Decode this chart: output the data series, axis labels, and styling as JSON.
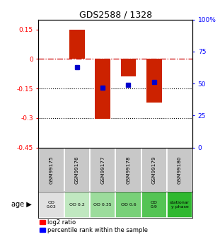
{
  "title": "GDS2588 / 1328",
  "samples": [
    "GSM99175",
    "GSM99176",
    "GSM99177",
    "GSM99178",
    "GSM99179",
    "GSM99180"
  ],
  "log2_ratio": [
    0.0,
    0.15,
    -0.305,
    -0.09,
    -0.22,
    0.0
  ],
  "percentile_rank": [
    null,
    63,
    47,
    49,
    51,
    null
  ],
  "bar_color_log2": "#cc2200",
  "bar_color_pct": "#0000cc",
  "ylim_left": [
    -0.45,
    0.2
  ],
  "ylim_right": [
    0,
    100
  ],
  "yticks_left": [
    0.15,
    0.0,
    -0.15,
    -0.3,
    -0.45
  ],
  "ytick_labels_left": [
    "0.15",
    "0",
    "-0.15",
    "-0.3",
    "-0.45"
  ],
  "yticks_right": [
    100,
    75,
    50,
    25,
    0
  ],
  "ytick_labels_right": [
    "100%",
    "75",
    "50",
    "25",
    "0"
  ],
  "hlines_dotted": [
    -0.15,
    -0.3
  ],
  "hline_dashdot": 0.0,
  "age_labels": [
    "OD\n0.03",
    "OD 0.2",
    "OD 0.35",
    "OD 0.6",
    "OD\n0.9",
    "stationar\ny phase"
  ],
  "age_colors": [
    "#e0e0e0",
    "#c0e8c0",
    "#9cdc9c",
    "#78d078",
    "#54c454",
    "#30b830"
  ],
  "sample_bg_color": "#c8c8c8",
  "legend_log2": "log2 ratio",
  "legend_pct": "percentile rank within the sample",
  "bar_width": 0.6
}
